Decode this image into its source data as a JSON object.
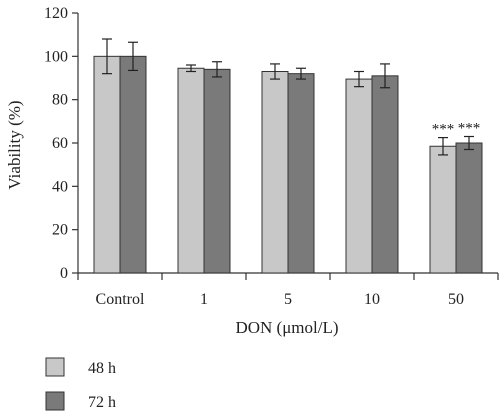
{
  "chart_data": {
    "type": "bar",
    "xlabel": "DON (μmol/L)",
    "ylabel": "Viability (%)",
    "ylim": [
      0,
      120
    ],
    "yticks": [
      0,
      20,
      40,
      60,
      80,
      100,
      120
    ],
    "categories": [
      "Control",
      "1",
      "5",
      "10",
      "50"
    ],
    "series": [
      {
        "name": "48 h",
        "color": "#c8c8c8",
        "values": [
          100,
          94.5,
          93,
          89.5,
          58.5
        ],
        "errors": [
          8,
          1.5,
          3.5,
          3.5,
          4
        ]
      },
      {
        "name": "72 h",
        "color": "#7a7a7a",
        "values": [
          100,
          94,
          92,
          91,
          60
        ],
        "errors": [
          6.5,
          3.5,
          2.5,
          5.5,
          3
        ]
      }
    ],
    "annotations": [
      {
        "category": "50",
        "series": "48 h",
        "text": "***"
      },
      {
        "category": "50",
        "series": "72 h",
        "text": "***"
      }
    ],
    "legend_position": "bottom-left",
    "grid": false
  }
}
